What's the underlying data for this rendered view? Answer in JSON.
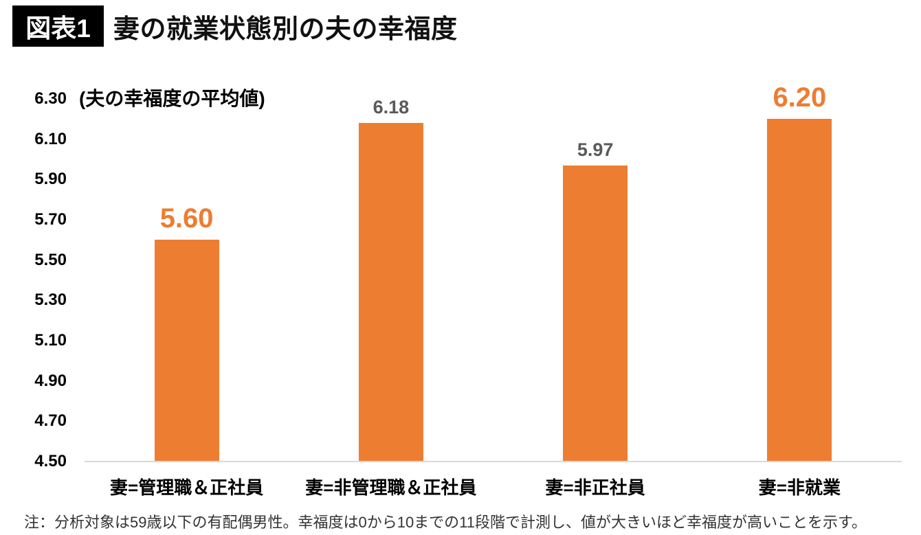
{
  "figure": {
    "badge": "図表1",
    "title": "妻の就業状態別の夫の幸福度",
    "note": "注：分析対象は59歳以下の有配偶男性。幸福度は0から10までの11段階で計測し、値が大きいほど幸福度が高いことを示す。",
    "colors": {
      "badge_bg": "#000000",
      "badge_text": "#ffffff"
    }
  },
  "chart_data": {
    "type": "bar",
    "title": "妻の就業状態別の夫の幸福度",
    "axis_unit_label": "(夫の幸福度の平均値)",
    "categories": [
      "妻=管理職＆正社員",
      "妻=非管理職＆正社員",
      "妻=非正社員",
      "妻=非就業"
    ],
    "values": [
      5.6,
      6.18,
      5.97,
      6.2
    ],
    "value_labels": [
      "5.60",
      "6.18",
      "5.97",
      "6.20"
    ],
    "emphasized": [
      true,
      false,
      false,
      true
    ],
    "xlabel": "",
    "ylabel": "夫の幸福度の平均値",
    "ylim": [
      4.5,
      6.3
    ],
    "ytick_step": 0.2,
    "yticks": [
      "6.30",
      "6.10",
      "5.90",
      "5.70",
      "5.50",
      "5.30",
      "5.10",
      "4.90",
      "4.70",
      "4.50"
    ],
    "grid": false,
    "legend": false,
    "colors": {
      "bar": "#ED7D31",
      "emphasized_label": "#ED7D31",
      "value_label": "#595959",
      "axis_text": "#000000",
      "baseline": "#D9D9D9"
    }
  }
}
